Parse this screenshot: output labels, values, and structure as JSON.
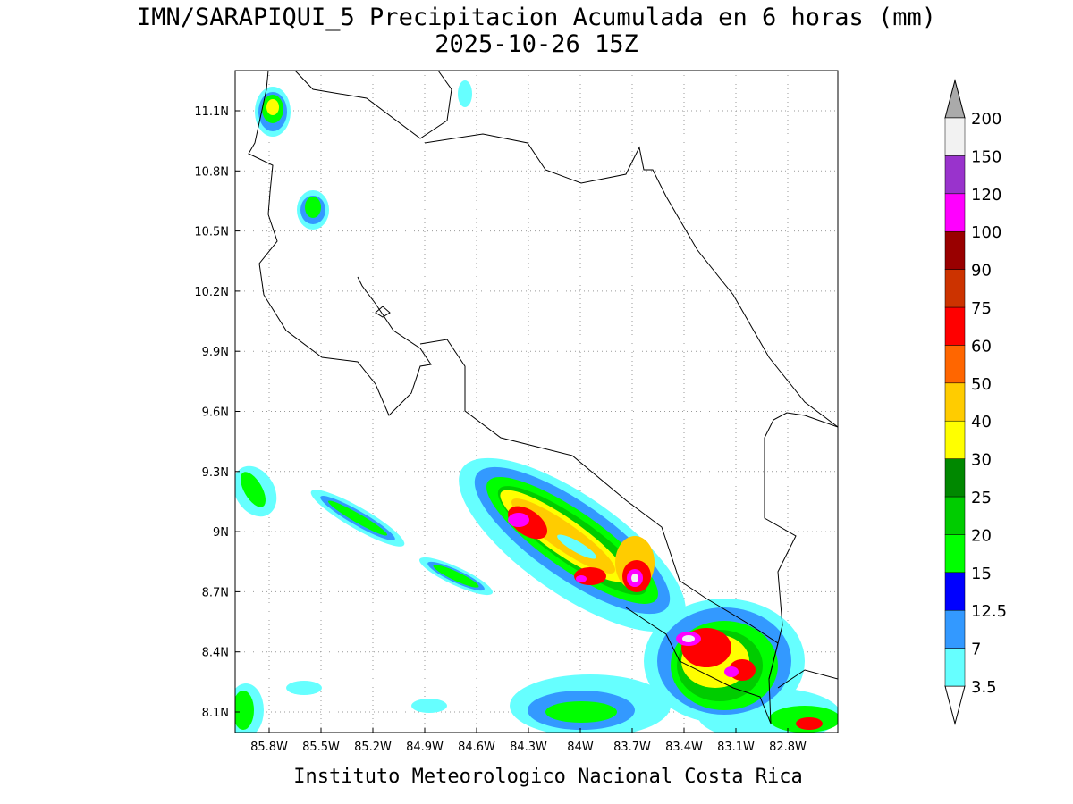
{
  "title": "IMN/SARAPIQUI_5 Precipitacion Acumulada en 6 horas (mm)",
  "subtitle": "2025-10-26 15Z",
  "map": {
    "lon_labels": [
      "85.8W",
      "85.5W",
      "85.2W",
      "84.9W",
      "84.6W",
      "84.3W",
      "84W",
      "83.7W",
      "83.4W",
      "83.1W",
      "82.8W"
    ],
    "lat_labels": [
      "11.1N",
      "10.8N",
      "10.5N",
      "10.2N",
      "9.9N",
      "9.6N",
      "9.3N",
      "9N",
      "8.7N",
      "8.4N",
      "8.1N"
    ]
  },
  "colorbar": {
    "levels": [
      3.5,
      7,
      12.5,
      15,
      20,
      25,
      30,
      40,
      50,
      60,
      75,
      90,
      100,
      120,
      150,
      200
    ],
    "colors": [
      "#66ffff",
      "#3399ff",
      "#0000ff",
      "#00ff00",
      "#00cc00",
      "#008800",
      "#ffff00",
      "#ffcc00",
      "#ff6600",
      "#ff0000",
      "#cc3300",
      "#990000",
      "#ff00ff",
      "#9933cc",
      "#f2f2f2"
    ],
    "under_color": "#ffffff",
    "over_color": "#aaaaaa"
  },
  "footer": "Instituto Meteorologico Nacional Costa Rica"
}
